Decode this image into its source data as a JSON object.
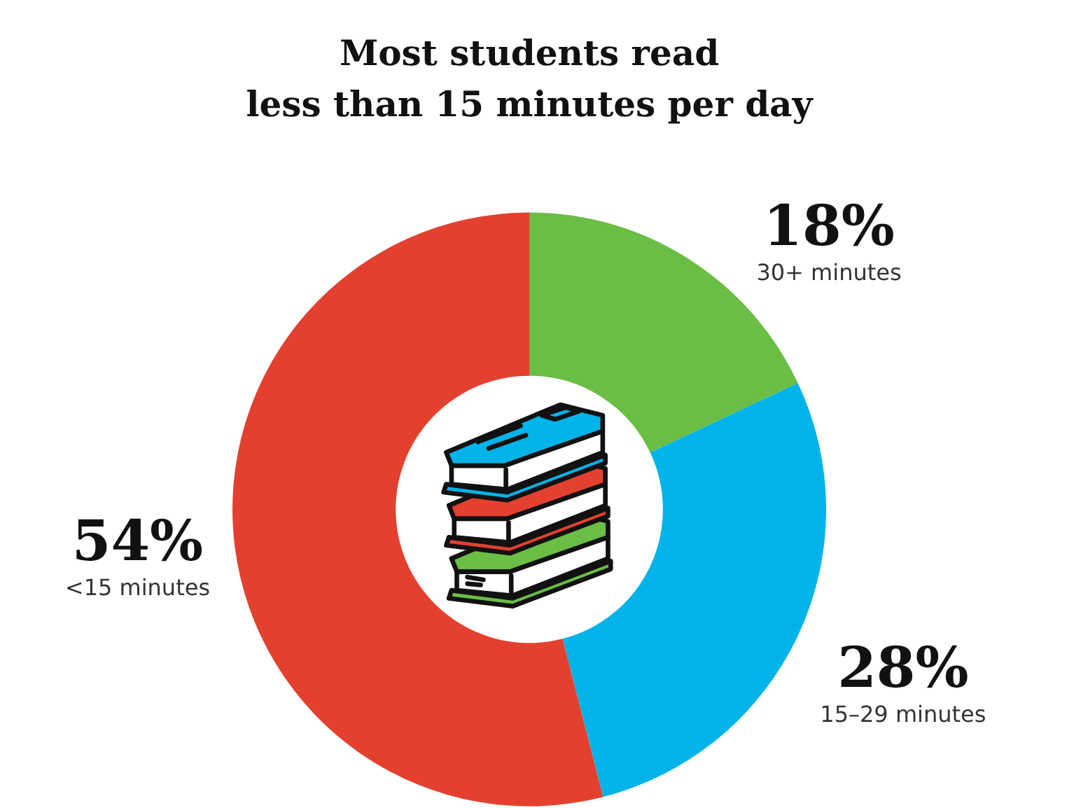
{
  "chart_data": {
    "type": "donut",
    "title": "Most students read\nless than 15 minutes per day",
    "categories": [
      "30+ minutes",
      "15–29 minutes",
      "<15 minutes"
    ],
    "values": [
      18,
      28,
      54
    ],
    "colors": [
      "#6abd45",
      "#00b3e8",
      "#e4402f"
    ],
    "value_labels": [
      "18%",
      "28%",
      "54%"
    ],
    "legend": false
  }
}
